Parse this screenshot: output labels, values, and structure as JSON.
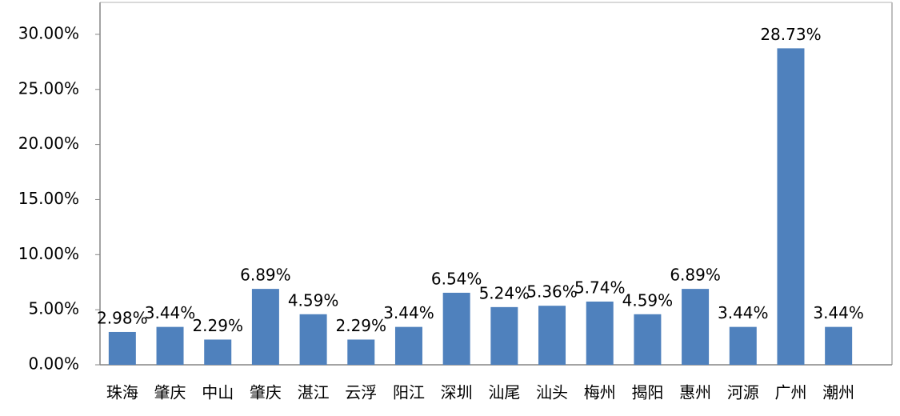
{
  "chart_data": {
    "type": "bar",
    "categories": [
      "珠海",
      "肇庆",
      "中山",
      "肇庆",
      "湛江",
      "云浮",
      "阳江",
      "深圳",
      "汕尾",
      "汕头",
      "梅州",
      "揭阳",
      "惠州",
      "河源",
      "广州",
      "潮州"
    ],
    "values": [
      2.98,
      3.44,
      2.29,
      6.89,
      4.59,
      2.29,
      3.44,
      6.54,
      5.24,
      5.36,
      5.74,
      4.59,
      6.89,
      3.44,
      28.73,
      3.44
    ],
    "value_labels": [
      "2.98%",
      "3.44%",
      "2.29%",
      "6.89%",
      "4.59%",
      "2.29%",
      "3.44%",
      "6.54%",
      "5.24%",
      "5.36%",
      "5.74%",
      "4.59%",
      "6.89%",
      "3.44%",
      "28.73%",
      "3.44%"
    ],
    "color": "#4f81bd",
    "ylim": [
      0,
      32.5
    ],
    "yticks": [
      {
        "value": 0,
        "label": "0.00%"
      },
      {
        "value": 5,
        "label": "5.00%"
      },
      {
        "value": 10,
        "label": "10.00%"
      },
      {
        "value": 15,
        "label": "15.00%"
      },
      {
        "value": 20,
        "label": "20.00%"
      },
      {
        "value": 25,
        "label": "25.00%"
      },
      {
        "value": 30,
        "label": "30.00%"
      }
    ],
    "grid": false
  }
}
